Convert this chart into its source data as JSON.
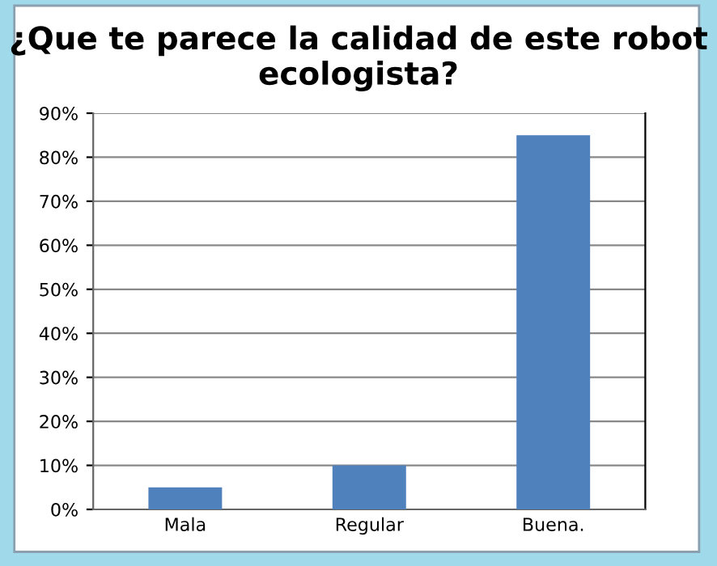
{
  "chart_data": {
    "type": "bar",
    "title": "¿Que te parece la calidad de este robot ecologista?",
    "categories": [
      "Mala",
      "Regular",
      "Buena."
    ],
    "values": [
      5,
      10,
      85
    ],
    "color": "#4f81bd",
    "ylim": [
      0,
      90
    ],
    "yticks": [
      {
        "value": 0,
        "label": "0%"
      },
      {
        "value": 10,
        "label": "10%"
      },
      {
        "value": 20,
        "label": "20%"
      },
      {
        "value": 30,
        "label": "30%"
      },
      {
        "value": 40,
        "label": "40%"
      },
      {
        "value": 50,
        "label": "50%"
      },
      {
        "value": 60,
        "label": "60%"
      },
      {
        "value": 70,
        "label": "70%"
      },
      {
        "value": 80,
        "label": "80%"
      },
      {
        "value": 90,
        "label": "90%"
      }
    ],
    "grid": "y",
    "legend": false
  }
}
